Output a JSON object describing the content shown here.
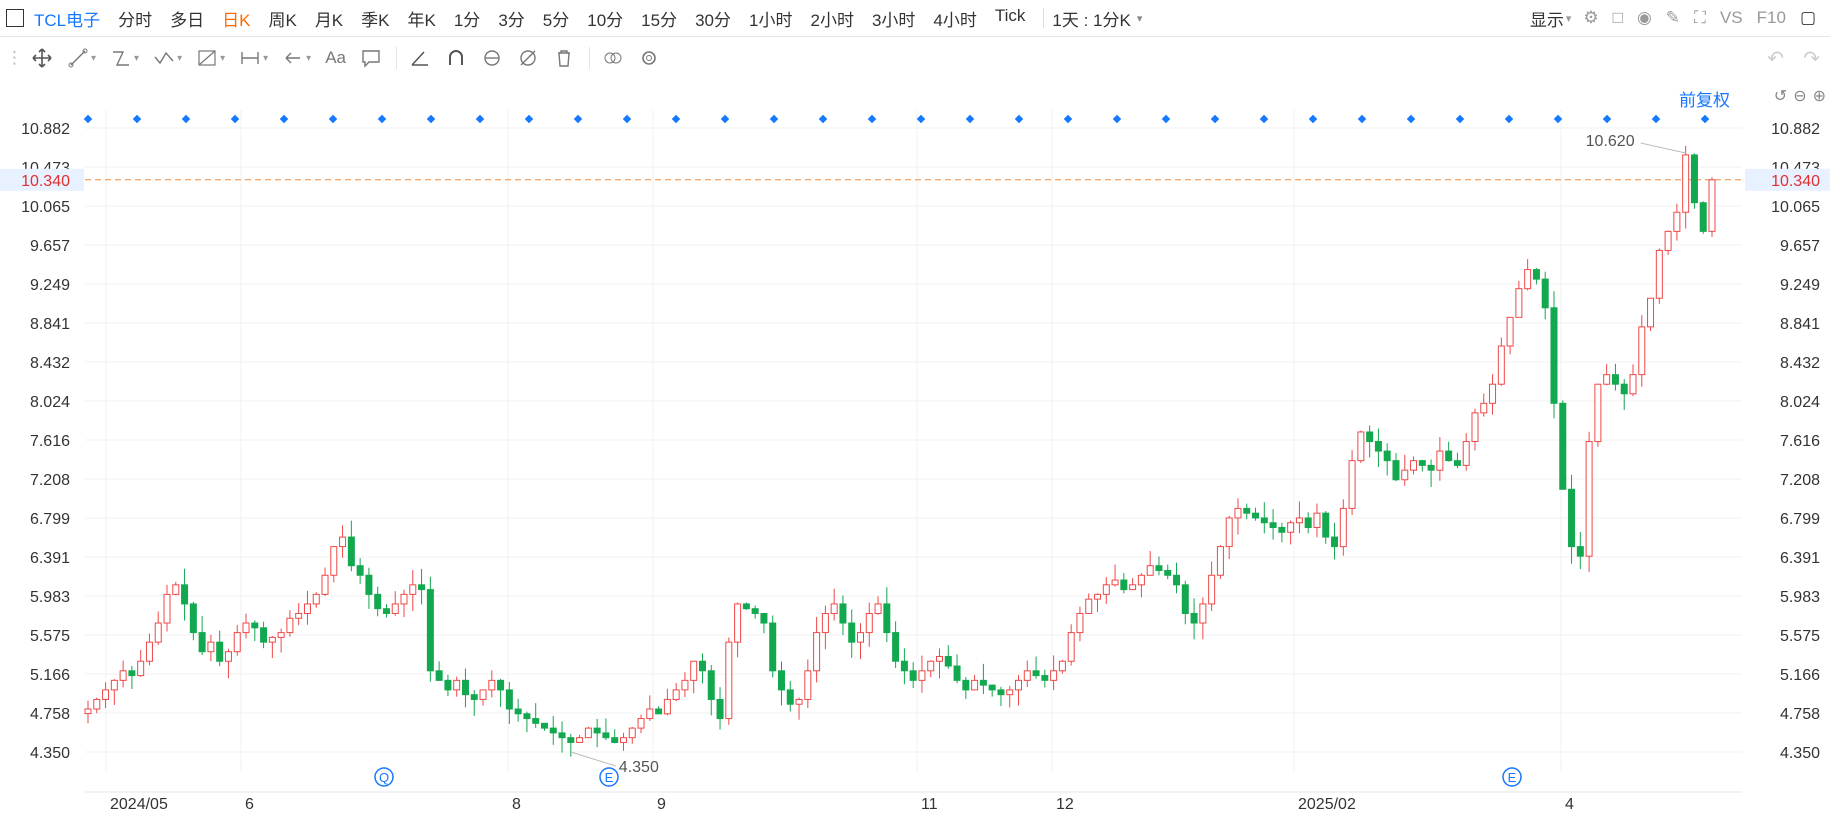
{
  "header": {
    "stock_name": "TCL电子",
    "periods": [
      "分时",
      "多日",
      "日K",
      "周K",
      "月K",
      "季K",
      "年K",
      "1分",
      "3分",
      "5分",
      "10分",
      "15分",
      "30分",
      "1小时",
      "2小时",
      "3小时",
      "4小时",
      "Tick"
    ],
    "active_period": "日K",
    "range_label": "1天 : 1分K",
    "display_label": "显示",
    "vs_label": "VS",
    "f10_label": "F10"
  },
  "toolbar": {
    "text_tool": "Aa"
  },
  "chart": {
    "adjust_label": "前复权",
    "current_price": "10.340",
    "high_label": "10.620",
    "low_label": "4.350",
    "event_markers": [
      "Q",
      "E",
      "E"
    ]
  },
  "chart_data": {
    "type": "candlestick",
    "yticks": [
      "10.882",
      "10.473",
      "10.065",
      "9.657",
      "9.249",
      "8.841",
      "8.432",
      "8.024",
      "7.616",
      "7.208",
      "6.799",
      "6.391",
      "5.983",
      "5.575",
      "5.166",
      "4.758",
      "4.350"
    ],
    "ylim": [
      4.35,
      10.882
    ],
    "xticks": [
      "2024/05",
      "6",
      "8",
      "9",
      "11",
      "12",
      "2025/02",
      "4"
    ],
    "current_price": 10.34,
    "high": 10.62,
    "low": 4.35,
    "colors": {
      "up": "#f04848",
      "down": "#12a84f",
      "current_line": "#f08c3c",
      "accent": "#1677ff"
    },
    "closes": [
      4.8,
      4.9,
      5.0,
      5.1,
      5.2,
      5.15,
      5.3,
      5.5,
      5.7,
      6.0,
      6.1,
      5.9,
      5.6,
      5.4,
      5.5,
      5.3,
      5.4,
      5.6,
      5.7,
      5.65,
      5.5,
      5.55,
      5.6,
      5.75,
      5.8,
      5.9,
      6.0,
      6.2,
      6.5,
      6.6,
      6.3,
      6.2,
      6.0,
      5.85,
      5.8,
      5.9,
      6.0,
      6.1,
      6.05,
      5.2,
      5.1,
      5.0,
      5.1,
      4.95,
      4.9,
      5.0,
      5.1,
      5.0,
      4.8,
      4.75,
      4.7,
      4.65,
      4.6,
      4.55,
      4.5,
      4.45,
      4.5,
      4.6,
      4.55,
      4.5,
      4.45,
      4.5,
      4.6,
      4.7,
      4.8,
      4.75,
      4.9,
      5.0,
      5.1,
      5.3,
      5.2,
      4.9,
      4.7,
      5.5,
      5.9,
      5.85,
      5.8,
      5.7,
      5.2,
      5.0,
      4.85,
      4.9,
      5.2,
      5.6,
      5.8,
      5.9,
      5.7,
      5.5,
      5.6,
      5.8,
      5.9,
      5.6,
      5.3,
      5.2,
      5.1,
      5.2,
      5.3,
      5.35,
      5.25,
      5.1,
      5.0,
      5.1,
      5.05,
      5.0,
      4.95,
      5.0,
      5.1,
      5.2,
      5.15,
      5.1,
      5.2,
      5.3,
      5.6,
      5.8,
      5.95,
      6.0,
      6.1,
      6.15,
      6.05,
      6.1,
      6.2,
      6.3,
      6.25,
      6.2,
      6.1,
      5.8,
      5.7,
      5.9,
      6.2,
      6.5,
      6.8,
      6.9,
      6.85,
      6.8,
      6.75,
      6.7,
      6.65,
      6.75,
      6.8,
      6.7,
      6.85,
      6.6,
      6.5,
      6.9,
      7.4,
      7.7,
      7.6,
      7.5,
      7.4,
      7.2,
      7.3,
      7.4,
      7.35,
      7.3,
      7.5,
      7.4,
      7.35,
      7.6,
      7.9,
      8.0,
      8.2,
      8.6,
      8.9,
      9.2,
      9.4,
      9.3,
      9.0,
      8.0,
      7.1,
      6.5,
      6.4,
      7.6,
      8.2,
      8.3,
      8.2,
      8.1,
      8.3,
      8.8,
      9.1,
      9.6,
      9.8,
      10.0,
      10.6,
      10.1,
      9.8,
      10.34
    ]
  }
}
